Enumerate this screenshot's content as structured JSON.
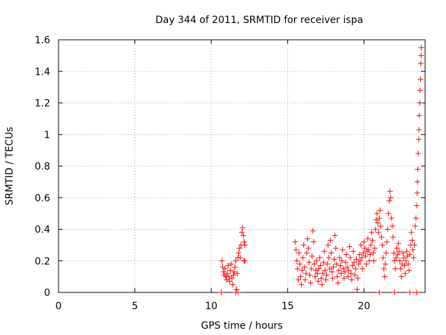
{
  "chart_data": {
    "type": "scatter",
    "title": "Day 344 of 2011, SRMTID for receiver ispa",
    "xlabel": "GPS time / hours",
    "ylabel": "SRMTID / TECUs",
    "xlim": [
      0,
      24
    ],
    "ylim": [
      0,
      1.6
    ],
    "xticks": [
      0,
      5,
      10,
      15,
      20
    ],
    "xtick_labels": [
      "0",
      "5",
      "10",
      "15",
      "20"
    ],
    "yticks": [
      0,
      0.2,
      0.4,
      0.6,
      0.8,
      1.0,
      1.2,
      1.4,
      1.6
    ],
    "ytick_labels": [
      "0",
      "0.2",
      "0.4",
      "0.6",
      "0.8",
      "1",
      "1.2",
      "1.4",
      "1.6"
    ],
    "grid": true,
    "marker": "+",
    "marker_color": "#ff0000",
    "series": [
      {
        "name": "SRMTID",
        "points": [
          [
            10.65,
            0.0
          ],
          [
            10.7,
            0.2
          ],
          [
            10.75,
            0.16
          ],
          [
            10.8,
            0.13
          ],
          [
            10.85,
            0.11
          ],
          [
            10.9,
            0.15
          ],
          [
            10.95,
            0.1
          ],
          [
            11.0,
            0.08
          ],
          [
            11.05,
            0.12
          ],
          [
            11.1,
            0.17
          ],
          [
            11.15,
            0.1
          ],
          [
            11.2,
            0.07
          ],
          [
            11.25,
            0.14
          ],
          [
            11.3,
            0.18
          ],
          [
            11.35,
            0.09
          ],
          [
            11.4,
            0.05
          ],
          [
            11.45,
            0.11
          ],
          [
            11.5,
            0.13
          ],
          [
            11.55,
            0.16
          ],
          [
            11.6,
            0.2
          ],
          [
            11.65,
            0.02
          ],
          [
            11.7,
            0.12
          ],
          [
            11.75,
            0.22
          ],
          [
            11.8,
            0.25
          ],
          [
            11.85,
            0.28
          ],
          [
            11.9,
            0.22
          ],
          [
            11.95,
            0.3
          ],
          [
            12.0,
            0.38
          ],
          [
            12.05,
            0.41
          ],
          [
            12.1,
            0.36
          ],
          [
            12.15,
            0.32
          ],
          [
            12.2,
            0.3
          ],
          [
            12.2,
            0.2
          ],
          [
            12.15,
            0.2
          ],
          [
            11.6,
            0.0
          ],
          [
            11.75,
            0.0
          ],
          [
            15.5,
            0.32
          ],
          [
            15.55,
            0.27
          ],
          [
            15.6,
            0.2
          ],
          [
            15.65,
            0.15
          ],
          [
            15.7,
            0.08
          ],
          [
            15.75,
            0.25
          ],
          [
            15.8,
            0.18
          ],
          [
            15.85,
            0.1
          ],
          [
            15.9,
            0.05
          ],
          [
            15.95,
            0.14
          ],
          [
            16.0,
            0.22
          ],
          [
            16.05,
            0.3
          ],
          [
            16.1,
            0.16
          ],
          [
            16.15,
            0.08
          ],
          [
            16.2,
            0.12
          ],
          [
            16.25,
            0.25
          ],
          [
            16.3,
            0.34
          ],
          [
            16.35,
            0.28
          ],
          [
            16.4,
            0.19
          ],
          [
            16.45,
            0.11
          ],
          [
            16.5,
            0.06
          ],
          [
            16.55,
            0.15
          ],
          [
            16.6,
            0.23
          ],
          [
            16.65,
            0.39
          ],
          [
            16.7,
            0.32
          ],
          [
            16.75,
            0.18
          ],
          [
            16.8,
            0.1
          ],
          [
            16.85,
            0.14
          ],
          [
            16.9,
            0.2
          ],
          [
            16.95,
            0.12
          ],
          [
            17.0,
            0.07
          ],
          [
            17.05,
            0.15
          ],
          [
            17.1,
            0.22
          ],
          [
            17.15,
            0.17
          ],
          [
            17.2,
            0.09
          ],
          [
            17.25,
            0.05
          ],
          [
            17.3,
            0.12
          ],
          [
            17.35,
            0.19
          ],
          [
            17.4,
            0.26
          ],
          [
            17.45,
            0.14
          ],
          [
            17.5,
            0.08
          ],
          [
            17.55,
            0.11
          ],
          [
            17.6,
            0.18
          ],
          [
            17.65,
            0.3
          ],
          [
            17.7,
            0.22
          ],
          [
            17.75,
            0.15
          ],
          [
            17.8,
            0.33
          ],
          [
            17.85,
            0.25
          ],
          [
            17.9,
            0.13
          ],
          [
            17.95,
            0.09
          ],
          [
            18.0,
            0.16
          ],
          [
            18.05,
            0.21
          ],
          [
            18.1,
            0.36
          ],
          [
            18.15,
            0.28
          ],
          [
            18.2,
            0.18
          ],
          [
            18.25,
            0.1
          ],
          [
            18.3,
            0.06
          ],
          [
            18.35,
            0.14
          ],
          [
            18.4,
            0.22
          ],
          [
            18.45,
            0.17
          ],
          [
            18.5,
            0.12
          ],
          [
            18.55,
            0.2
          ],
          [
            18.6,
            0.27
          ],
          [
            18.65,
            0.15
          ],
          [
            18.7,
            0.09
          ],
          [
            18.75,
            0.13
          ],
          [
            18.8,
            0.19
          ],
          [
            18.85,
            0.24
          ],
          [
            18.9,
            0.16
          ],
          [
            18.95,
            0.1
          ],
          [
            19.0,
            0.14
          ],
          [
            19.05,
            0.29
          ],
          [
            19.1,
            0.22
          ],
          [
            19.15,
            0.12
          ],
          [
            19.2,
            0.08
          ],
          [
            19.25,
            0.17
          ],
          [
            19.3,
            0.26
          ],
          [
            19.35,
            0.19
          ],
          [
            19.4,
            0.11
          ],
          [
            19.45,
            0.15
          ],
          [
            19.5,
            0.21
          ],
          [
            19.55,
            0.02
          ],
          [
            19.6,
            0.09
          ],
          [
            19.65,
            0.18
          ],
          [
            19.7,
            0.24
          ],
          [
            19.75,
            0.2
          ],
          [
            19.8,
            0.3
          ],
          [
            19.85,
            0.22
          ],
          [
            19.9,
            0.15
          ],
          [
            19.95,
            0.25
          ],
          [
            20.0,
            0.32
          ],
          [
            20.05,
            0.28
          ],
          [
            20.1,
            0.23
          ],
          [
            20.15,
            0.18
          ],
          [
            20.2,
            0.26
          ],
          [
            20.25,
            0.34
          ],
          [
            20.3,
            0.27
          ],
          [
            20.35,
            0.2
          ],
          [
            20.4,
            0.24
          ],
          [
            20.45,
            0.3
          ],
          [
            20.5,
            0.38
          ],
          [
            20.55,
            0.33
          ],
          [
            20.6,
            0.25
          ],
          [
            20.65,
            0.2
          ],
          [
            20.7,
            0.28
          ],
          [
            20.75,
            0.4
          ],
          [
            20.8,
            0.46
          ],
          [
            20.85,
            0.5
          ],
          [
            20.9,
            0.44
          ],
          [
            20.95,
            0.38
          ],
          [
            21.0,
            0.47
          ],
          [
            21.05,
            0.52
          ],
          [
            21.1,
            0.42
          ],
          [
            21.15,
            0.35
          ],
          [
            21.2,
            0.3
          ],
          [
            21.25,
            0.22
          ],
          [
            21.3,
            0.15
          ],
          [
            21.35,
            0.1
          ],
          [
            21.4,
            0.18
          ],
          [
            21.45,
            0.25
          ],
          [
            21.5,
            0.32
          ],
          [
            21.55,
            0.4
          ],
          [
            21.6,
            0.5
          ],
          [
            21.65,
            0.58
          ],
          [
            21.7,
            0.64
          ],
          [
            21.75,
            0.6
          ],
          [
            21.8,
            0.47
          ],
          [
            21.85,
            0.42
          ],
          [
            21.9,
            0.35
          ],
          [
            21.95,
            0.25
          ],
          [
            22.0,
            0.2
          ],
          [
            22.05,
            0.15
          ],
          [
            22.1,
            0.22
          ],
          [
            22.15,
            0.28
          ],
          [
            22.2,
            0.24
          ],
          [
            22.25,
            0.31
          ],
          [
            22.3,
            0.26
          ],
          [
            22.35,
            0.2
          ],
          [
            22.4,
            0.15
          ],
          [
            22.45,
            0.1
          ],
          [
            22.5,
            0.18
          ],
          [
            22.55,
            0.25
          ],
          [
            22.6,
            0.22
          ],
          [
            22.65,
            0.17
          ],
          [
            22.7,
            0.12
          ],
          [
            22.75,
            0.2
          ],
          [
            22.8,
            0.26
          ],
          [
            22.85,
            0.23
          ],
          [
            22.9,
            0.18
          ],
          [
            22.95,
            0.14
          ],
          [
            23.0,
            0.24
          ],
          [
            23.05,
            0.3
          ],
          [
            23.1,
            0.38
          ],
          [
            23.15,
            0.33
          ],
          [
            23.2,
            0.27
          ],
          [
            23.25,
            0.22
          ],
          [
            23.3,
            0.3
          ],
          [
            23.35,
            0.42
          ],
          [
            23.4,
            0.47
          ],
          [
            23.45,
            0.55
          ],
          [
            23.48,
            0.63
          ],
          [
            23.5,
            0.7
          ],
          [
            23.52,
            0.78
          ],
          [
            23.55,
            0.88
          ],
          [
            23.58,
            0.97
          ],
          [
            23.6,
            1.03
          ],
          [
            23.62,
            1.12
          ],
          [
            23.65,
            1.2
          ],
          [
            23.67,
            1.28
          ],
          [
            23.7,
            1.35
          ],
          [
            23.72,
            1.45
          ],
          [
            23.74,
            1.5
          ],
          [
            23.75,
            1.55
          ],
          [
            23.45,
            0.0
          ],
          [
            21.0,
            0.0
          ],
          [
            22.0,
            0.0
          ],
          [
            23.0,
            0.0
          ]
        ]
      }
    ]
  }
}
